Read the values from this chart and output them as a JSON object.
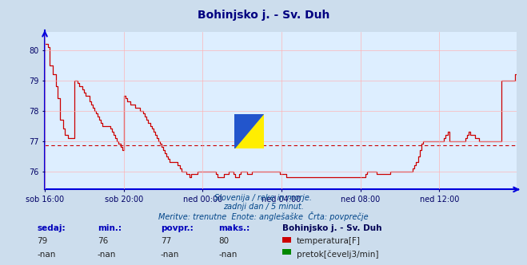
{
  "title": "Bohinjsko j. - Sv. Duh",
  "title_color": "#000080",
  "background_color": "#ccdded",
  "plot_bg_color": "#ddeeff",
  "grid_color": "#ffb0b0",
  "axis_color": "#0000dd",
  "line_color": "#cc0000",
  "avg_line_color": "#cc0000",
  "avg_value": 76.85,
  "ylim": [
    75.4,
    80.6
  ],
  "yticks": [
    76,
    77,
    78,
    79,
    80
  ],
  "tick_color": "#000066",
  "subtitle1": "Slovenija / reke in morje.",
  "subtitle2": "zadnji dan / 5 minut.",
  "subtitle3": "Meritve: trenutne  Enote: anglešaške  Črta: povprečje",
  "legend_title": "Bohinjsko j. - Sv. Duh",
  "legend_temp": "temperatura[F]",
  "legend_pretok": "pretok[čevelj3/min]",
  "legend_color_temp": "#cc0000",
  "legend_color_pretok": "#008800",
  "footer_labels": [
    "sedaj:",
    "min.:",
    "povpr.:",
    "maks.:"
  ],
  "footer_temp": [
    "79",
    "76",
    "77",
    "80"
  ],
  "footer_pretok": [
    "-nan",
    "-nan",
    "-nan",
    "-nan"
  ],
  "xtick_labels": [
    "sob 16:00",
    "sob 20:00",
    "ned 00:00",
    "ned 04:00",
    "ned 08:00",
    "ned 12:00"
  ],
  "xtick_positions": [
    0,
    48,
    96,
    144,
    192,
    240
  ],
  "temp_data": [
    80.2,
    80.2,
    80.1,
    79.5,
    79.5,
    79.2,
    79.2,
    78.8,
    78.4,
    77.7,
    77.7,
    77.4,
    77.2,
    77.2,
    77.1,
    77.1,
    77.1,
    77.1,
    79.0,
    79.0,
    78.9,
    78.8,
    78.8,
    78.7,
    78.6,
    78.5,
    78.5,
    78.3,
    78.2,
    78.1,
    78.0,
    77.9,
    77.8,
    77.7,
    77.6,
    77.5,
    77.5,
    77.5,
    77.5,
    77.5,
    77.4,
    77.3,
    77.2,
    77.1,
    77.0,
    76.9,
    76.8,
    76.7,
    78.5,
    78.4,
    78.3,
    78.3,
    78.2,
    78.2,
    78.2,
    78.1,
    78.1,
    78.1,
    78.0,
    78.0,
    77.9,
    77.8,
    77.7,
    77.6,
    77.5,
    77.4,
    77.3,
    77.2,
    77.1,
    77.0,
    76.9,
    76.8,
    76.7,
    76.6,
    76.5,
    76.4,
    76.3,
    76.3,
    76.3,
    76.3,
    76.3,
    76.2,
    76.1,
    76.0,
    76.0,
    76.0,
    75.9,
    75.9,
    75.8,
    75.9,
    75.9,
    75.9,
    75.9,
    76.0,
    76.0,
    76.0,
    76.0,
    76.0,
    76.0,
    76.0,
    76.0,
    76.0,
    76.0,
    76.0,
    75.9,
    75.8,
    75.8,
    75.8,
    75.8,
    75.9,
    75.9,
    75.9,
    76.0,
    76.0,
    76.0,
    75.9,
    75.8,
    75.8,
    75.9,
    76.0,
    76.0,
    76.0,
    76.0,
    75.9,
    75.9,
    75.9,
    76.0,
    76.0,
    76.0,
    76.0,
    76.0,
    76.0,
    76.0,
    76.0,
    76.0,
    76.0,
    76.0,
    76.0,
    76.0,
    76.0,
    76.0,
    76.0,
    76.0,
    75.9,
    75.9,
    75.9,
    75.9,
    75.8,
    75.8,
    75.8,
    75.8,
    75.8,
    75.8,
    75.8,
    75.8,
    75.8,
    75.8,
    75.8,
    75.8,
    75.8,
    75.8,
    75.8,
    75.8,
    75.8,
    75.8,
    75.8,
    75.8,
    75.8,
    75.8,
    75.8,
    75.8,
    75.8,
    75.8,
    75.8,
    75.8,
    75.8,
    75.8,
    75.8,
    75.8,
    75.8,
    75.8,
    75.8,
    75.8,
    75.8,
    75.8,
    75.8,
    75.8,
    75.8,
    75.8,
    75.8,
    75.8,
    75.8,
    75.8,
    75.8,
    75.8,
    75.9,
    76.0,
    76.0,
    76.0,
    76.0,
    76.0,
    76.0,
    75.9,
    75.9,
    75.9,
    75.9,
    75.9,
    75.9,
    75.9,
    75.9,
    76.0,
    76.0,
    76.0,
    76.0,
    76.0,
    76.0,
    76.0,
    76.0,
    76.0,
    76.0,
    76.0,
    76.0,
    76.0,
    76.0,
    76.1,
    76.2,
    76.3,
    76.5,
    76.7,
    76.9,
    77.0,
    77.0,
    77.0,
    77.0,
    77.0,
    77.0,
    77.0,
    77.0,
    77.0,
    77.0,
    77.0,
    77.0,
    77.0,
    77.1,
    77.2,
    77.3,
    77.0,
    77.0,
    77.0,
    77.0,
    77.0,
    77.0,
    77.0,
    77.0,
    77.0,
    77.0,
    77.1,
    77.2,
    77.3,
    77.2,
    77.2,
    77.2,
    77.1,
    77.1,
    77.0,
    77.0,
    77.0,
    77.0,
    77.0,
    77.0,
    77.0,
    77.0,
    77.0,
    77.0,
    77.0,
    77.0,
    77.0,
    77.0,
    79.0,
    79.0,
    79.0,
    79.0,
    79.0,
    79.0,
    79.0,
    79.0,
    79.2,
    79.2
  ]
}
